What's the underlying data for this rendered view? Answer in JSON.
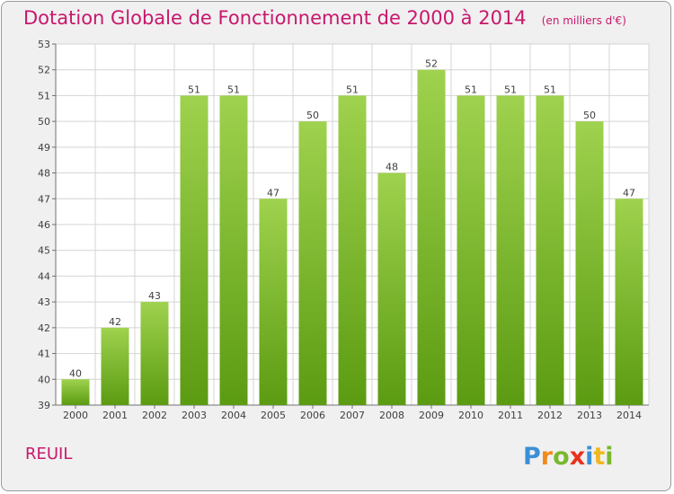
{
  "header": {
    "title": "Dotation Globale de Fonctionnement de 2000 à 2014",
    "subtitle": "(en milliers d'€)"
  },
  "footer": {
    "place": "REUIL",
    "logo_text": "Proxiti"
  },
  "colors": {
    "title": "#c8176c",
    "bar_top": "#9fd24e",
    "bar_bottom": "#5b9b12",
    "grid": "#d4d4d4",
    "background": "#f0f0f0"
  },
  "chart_data": {
    "type": "bar",
    "categories": [
      "2000",
      "2001",
      "2002",
      "2003",
      "2004",
      "2005",
      "2006",
      "2007",
      "2008",
      "2009",
      "2010",
      "2011",
      "2012",
      "2013",
      "2014"
    ],
    "values": [
      40,
      42,
      43,
      51,
      51,
      47,
      50,
      51,
      48,
      52,
      51,
      51,
      51,
      50,
      47
    ],
    "ylim": [
      39,
      53
    ],
    "yticks": [
      39,
      40,
      41,
      42,
      43,
      44,
      45,
      46,
      47,
      48,
      49,
      50,
      51,
      52,
      53
    ],
    "grid": true,
    "xlabel": "",
    "ylabel": ""
  }
}
